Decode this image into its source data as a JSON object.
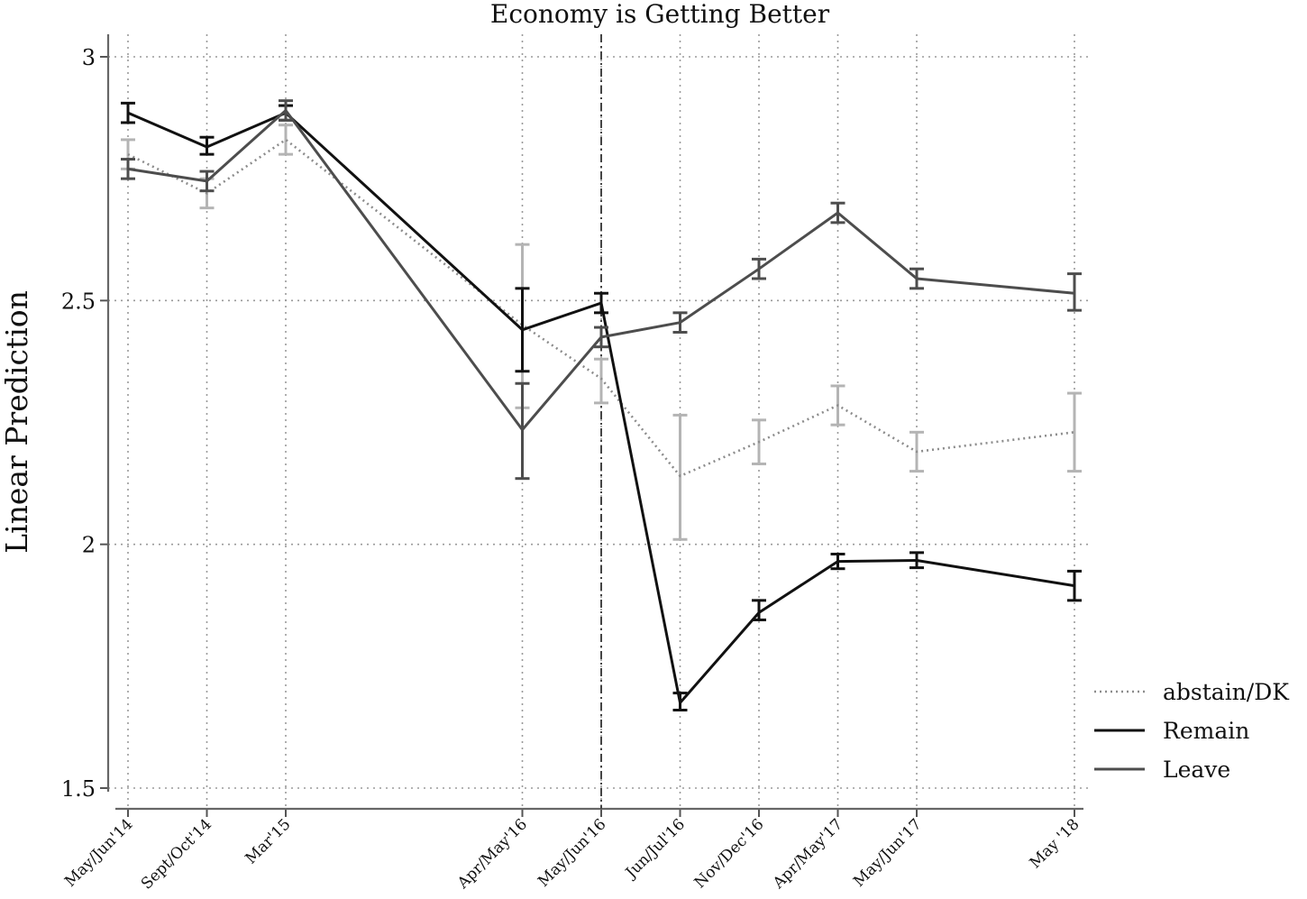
{
  "chart_data": {
    "type": "line",
    "title": "Economy is Getting Better",
    "xlabel": "",
    "ylabel": "Linear Prediction",
    "ylim": [
      1.5,
      3.0
    ],
    "yticks": [
      1.5,
      2.0,
      2.5,
      3.0
    ],
    "ytick_labels": [
      "1.5",
      "2",
      "2.5",
      "3"
    ],
    "categories": [
      "May/Jun'14",
      "Sept/Oct'14",
      "Mar'15",
      "Apr/May'16",
      "May/Jun'16",
      "Jun/Jul'16",
      "Nov/Dec'16",
      "Apr/May'17",
      "May/Jun'17",
      "May '18"
    ],
    "x_positions": [
      0,
      1,
      2,
      5,
      6,
      7,
      8,
      9,
      10,
      12
    ],
    "xlim": [
      0,
      12
    ],
    "vertical_reference_line": 6,
    "grid": true,
    "legend_position": "right",
    "series": [
      {
        "name": "abstain/DK",
        "color": "#8c8c8c",
        "ci_color": "#b4b4b4",
        "style": "dotted",
        "values": [
          2.8,
          2.72,
          2.83,
          2.45,
          2.34,
          2.14,
          2.21,
          2.285,
          2.19,
          2.23
        ],
        "ci_low": [
          2.77,
          2.69,
          2.8,
          2.28,
          2.29,
          2.01,
          2.165,
          2.245,
          2.15,
          2.15
        ],
        "ci_high": [
          2.83,
          2.75,
          2.86,
          2.615,
          2.38,
          2.265,
          2.255,
          2.325,
          2.23,
          2.31
        ]
      },
      {
        "name": "Remain",
        "color": "#111111",
        "ci_color": "#111111",
        "style": "solid",
        "values": [
          2.885,
          2.815,
          2.885,
          2.44,
          2.495,
          1.675,
          1.86,
          1.965,
          1.967,
          1.915
        ],
        "ci_low": [
          2.865,
          2.8,
          2.87,
          2.355,
          2.475,
          1.66,
          1.845,
          1.95,
          1.952,
          1.885
        ],
        "ci_high": [
          2.905,
          2.835,
          2.9,
          2.525,
          2.515,
          1.695,
          1.885,
          1.98,
          1.983,
          1.945
        ]
      },
      {
        "name": "Leave",
        "color": "#4d4d4d",
        "ci_color": "#4d4d4d",
        "style": "solid",
        "values": [
          2.77,
          2.745,
          2.89,
          2.235,
          2.425,
          2.455,
          2.565,
          2.68,
          2.545,
          2.515
        ],
        "ci_low": [
          2.75,
          2.725,
          2.87,
          2.135,
          2.405,
          2.435,
          2.545,
          2.66,
          2.525,
          2.48
        ],
        "ci_high": [
          2.79,
          2.765,
          2.91,
          2.33,
          2.445,
          2.475,
          2.585,
          2.7,
          2.565,
          2.555
        ]
      }
    ]
  }
}
